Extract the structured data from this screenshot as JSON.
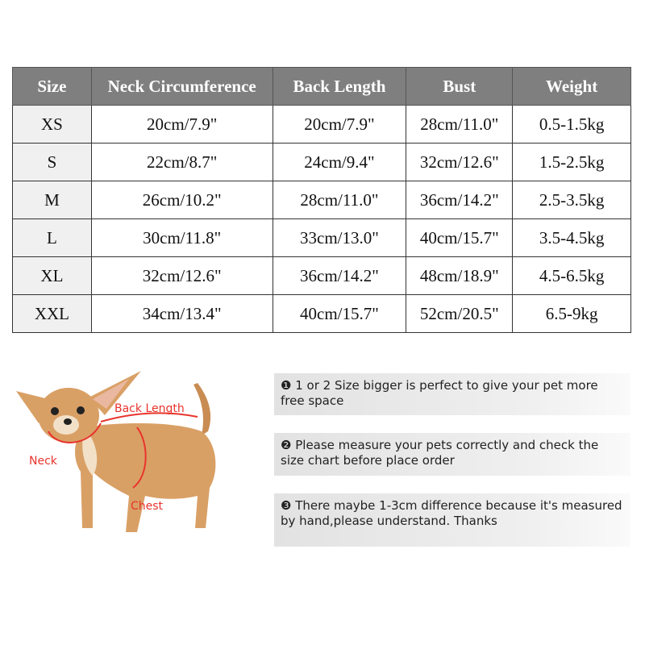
{
  "table": {
    "headers": [
      "Size",
      "Neck Circumference",
      "Back Length",
      "Bust",
      "Weight"
    ],
    "rows": [
      [
        "XS",
        "20cm/7.9\"",
        "20cm/7.9\"",
        "28cm/11.0\"",
        "0.5-1.5kg"
      ],
      [
        "S",
        "22cm/8.7\"",
        "24cm/9.4\"",
        "32cm/12.6\"",
        "1.5-2.5kg"
      ],
      [
        "M",
        "26cm/10.2\"",
        "28cm/11.0\"",
        "36cm/14.2\"",
        "2.5-3.5kg"
      ],
      [
        "L",
        "30cm/11.8\"",
        "33cm/13.0\"",
        "40cm/15.7\"",
        "3.5-4.5kg"
      ],
      [
        "XL",
        "32cm/12.6\"",
        "36cm/14.2\"",
        "48cm/18.9\"",
        "4.5-6.5kg"
      ],
      [
        "XXL",
        "34cm/13.4\"",
        "40cm/15.7\"",
        "52cm/20.5\"",
        "6.5-9kg"
      ]
    ]
  },
  "diagram": {
    "back_label": "Back Length",
    "neck_label": "Neck",
    "chest_label": "Chest",
    "label_color": "#e8342c"
  },
  "notes": [
    {
      "marker": "❶",
      "text": "1 or 2 Size bigger is perfect to give your pet more free space"
    },
    {
      "marker": "❷",
      "text": "Please measure your pets correctly and check the size chart before place order"
    },
    {
      "marker": "❸",
      "text": "There maybe 1-3cm difference because it's measured by hand,please understand. Thanks"
    }
  ]
}
